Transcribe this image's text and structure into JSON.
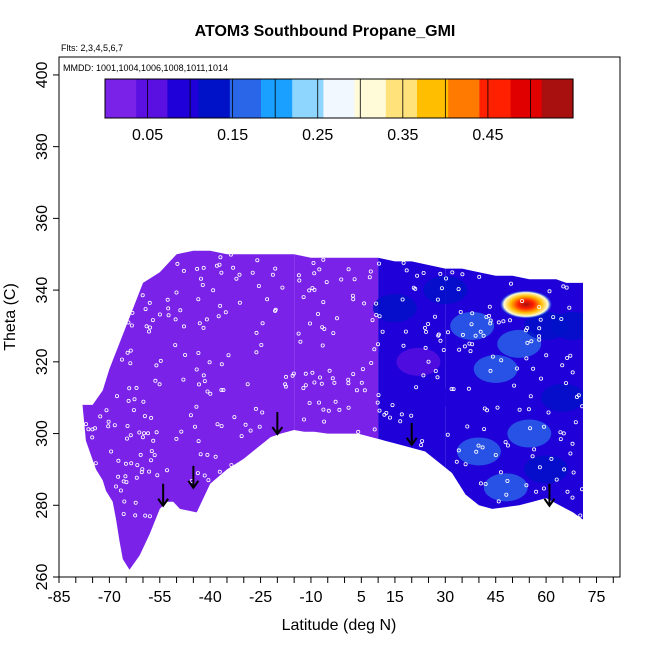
{
  "chart_data": {
    "type": "heatmap",
    "title": "ATOM3 Southbound Propane_GMI",
    "subtitle_flights": "Flts: 2,3,4,5,6,7",
    "subtitle_dates": "MMDD: 1001,1004,1006,1008,1011,1014",
    "xlabel": "Latitude (deg N)",
    "ylabel": "Theta (C)",
    "xlim": [
      -85,
      82
    ],
    "ylim": [
      260,
      405
    ],
    "x_ticks": [
      -85,
      -70,
      -55,
      -40,
      -25,
      -10,
      5,
      15,
      30,
      45,
      60,
      75
    ],
    "x_ticks_minor_step": 5,
    "y_ticks": [
      260,
      280,
      300,
      320,
      340,
      360,
      380,
      400
    ],
    "colorbar": {
      "range": [
        0.0,
        0.55
      ],
      "tick_values": [
        0.05,
        0.15,
        0.25,
        0.35,
        0.45
      ],
      "tick_labels": [
        "0.05",
        "0.15",
        "0.25",
        "0.35",
        "0.45"
      ],
      "boundaries": [
        0.05,
        0.1,
        0.15,
        0.2,
        0.25,
        0.3,
        0.35,
        0.4,
        0.45,
        0.5
      ],
      "colors": [
        "#7a22e8",
        "#5a10e0",
        "#1f00d8",
        "#0012c8",
        "#2a66e8",
        "#1aa0ff",
        "#8fd6ff",
        "#f2f8ff",
        "#fffbd8",
        "#ffe27a",
        "#ffbe00",
        "#ff7a00",
        "#ff2000",
        "#e00000",
        "#a81010"
      ]
    },
    "field": {
      "description_bands": "propane mixing ratio by latitude band",
      "bands": [
        {
          "lat_from": -78,
          "lat_to": -15,
          "value": 0.03
        },
        {
          "lat_from": -15,
          "lat_to": 10,
          "value": 0.035
        },
        {
          "lat_from": 10,
          "lat_to": 30,
          "value": 0.08
        },
        {
          "lat_from": 30,
          "lat_to": 72,
          "value": 0.11
        }
      ],
      "hotspot": {
        "lat": 54,
        "theta": 336,
        "value": 0.45
      }
    },
    "domain_outline": {
      "lat": [
        -78,
        -77,
        -74,
        -72,
        -71,
        -69,
        -68,
        -67,
        -66,
        -64,
        -61,
        -58,
        -55,
        -53,
        -51,
        -49,
        -44,
        -40,
        -35,
        -30,
        -26,
        -22,
        -19,
        -15,
        -12,
        -9,
        -5,
        0,
        4,
        8,
        12,
        16,
        20,
        24,
        28,
        32,
        36,
        40,
        44,
        48,
        52,
        56,
        60,
        64,
        68,
        71,
        71,
        68,
        66,
        63,
        60,
        55,
        50,
        45,
        40,
        35,
        30,
        25,
        20,
        15,
        10,
        5,
        0,
        -5,
        -10,
        -15,
        -20,
        -25,
        -30,
        -35,
        -40,
        -45,
        -50,
        -55,
        -60,
        -65,
        -70,
        -72,
        -75,
        -77,
        -78
      ],
      "theta": [
        308,
        298,
        290,
        287,
        284,
        281,
        276,
        270,
        265,
        262,
        266,
        272,
        279,
        281,
        281,
        279,
        278,
        286,
        290,
        293,
        296,
        299,
        300,
        301,
        300.5,
        300.5,
        300,
        300,
        300,
        299,
        298,
        297,
        296,
        295,
        292,
        289,
        283,
        280,
        279,
        279.5,
        280,
        281,
        282,
        280,
        278,
        276,
        342,
        342,
        342,
        343,
        343,
        343,
        344,
        344,
        345,
        346,
        346,
        347,
        348,
        348,
        349,
        349,
        349,
        349,
        349,
        350,
        350,
        350,
        350,
        350,
        351,
        351,
        350,
        345,
        342,
        330,
        318,
        312,
        308,
        308,
        308
      ]
    },
    "flight_arrows_lat": [
      -54,
      -45,
      -20,
      20,
      61
    ],
    "flight_arrows_theta_top": [
      286,
      291,
      306,
      303,
      286
    ]
  }
}
